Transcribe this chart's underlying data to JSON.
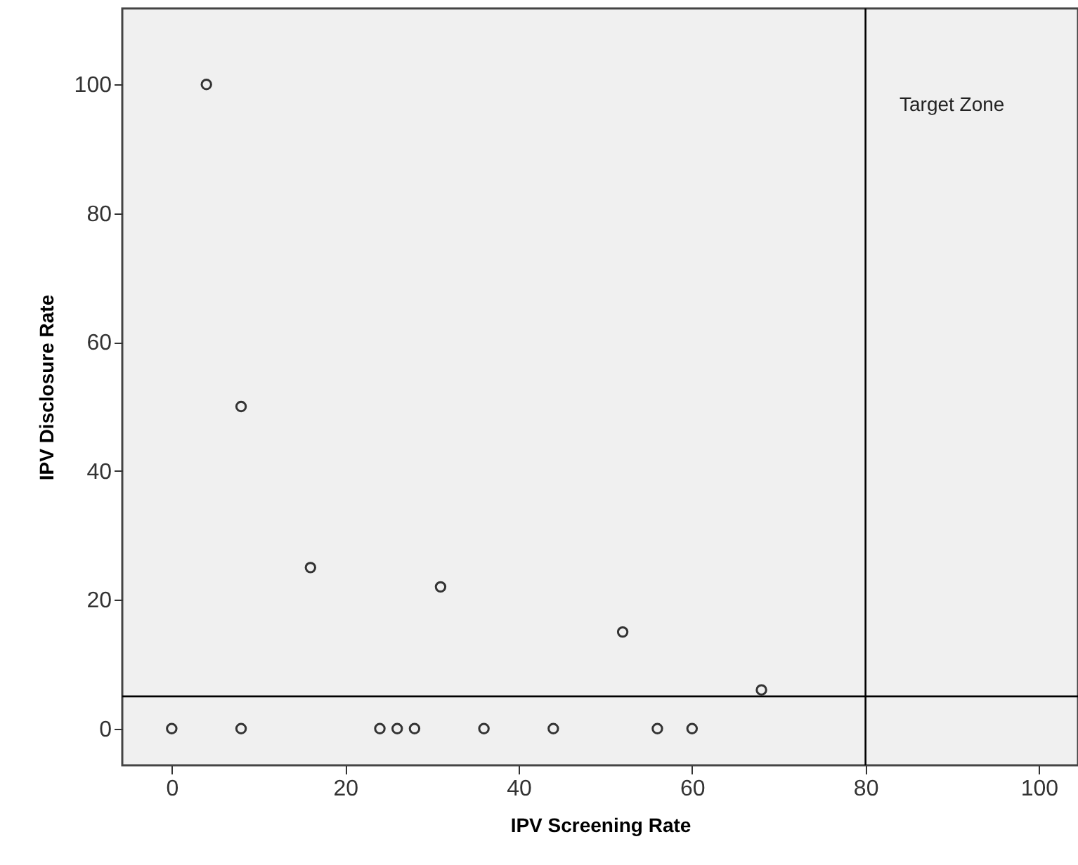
{
  "chart_data": {
    "type": "scatter",
    "xlabel": "IPV Screening Rate",
    "ylabel": "IPV Disclosure Rate",
    "x": [
      4,
      8,
      16,
      31,
      52,
      68,
      0,
      8,
      24,
      26,
      28,
      36,
      44,
      56,
      60
    ],
    "series": [
      {
        "color": "#333333",
        "values": [
          100,
          50,
          25,
          22,
          15,
          6,
          0,
          0,
          0,
          0,
          0,
          0,
          0,
          0,
          0
        ]
      }
    ],
    "xlim": [
      -5.7,
      104.5
    ],
    "ylim": [
      -5.7,
      111.8
    ],
    "xticks": [
      0,
      20,
      40,
      60,
      80,
      100
    ],
    "yticks": [
      0,
      20,
      40,
      60,
      80,
      100
    ],
    "grid": false,
    "marker": "circle",
    "ref_lines": [
      {
        "axis": "x",
        "value": 80,
        "color": "#000000"
      },
      {
        "axis": "y",
        "value": 5,
        "color": "#000000"
      }
    ],
    "annotations": [
      "Target Zone"
    ]
  }
}
